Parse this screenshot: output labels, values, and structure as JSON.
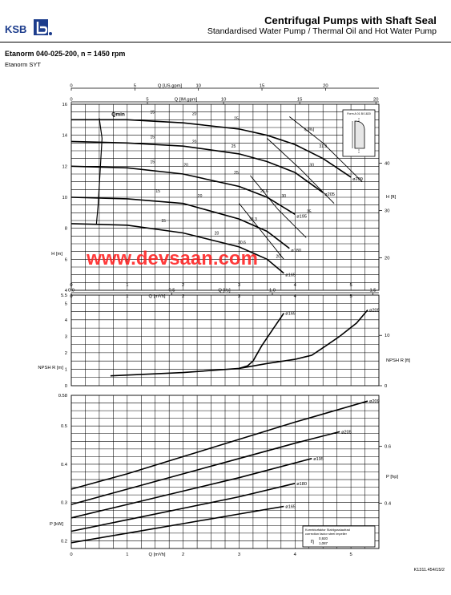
{
  "header": {
    "logo_text": "KSB",
    "title": "Centrifugal Pumps with Shaft Seal",
    "subtitle": "Standardised Water Pump / Thermal Oil and Hot Water Pump"
  },
  "pump": {
    "title": "Etanorm 040-025-200, n = 1450 rpm",
    "model": "Etanorm SYT"
  },
  "watermark": "www.devsaan.com",
  "footer": {
    "code": "K1311.454/15/2"
  },
  "chart_data": [
    {
      "type": "line",
      "id": "head",
      "x_axis": {
        "label": "Q [m³/h]",
        "range": [
          0,
          5.5
        ],
        "ticks": [
          "0",
          "1",
          "2",
          "3",
          "4",
          "5"
        ]
      },
      "top_axes": [
        {
          "label": "Q [US.gpm]",
          "range": [
            0,
            24.2
          ],
          "ticks": [
            "0",
            "5",
            "10",
            "15",
            "20"
          ]
        },
        {
          "label": "Q [IM.gpm]",
          "range": [
            0,
            20.2
          ],
          "ticks": [
            "0",
            "5",
            "10",
            "15",
            "20"
          ]
        }
      ],
      "y_axis": {
        "label": "H [m]",
        "range": [
          4,
          16
        ],
        "ticks": [
          "4",
          "6",
          "8",
          "10",
          "12",
          "14",
          "16"
        ]
      },
      "y2_axis": {
        "label": "H [ft]",
        "range": [
          13.1,
          52.5
        ],
        "ticks": [
          "20",
          "30",
          "40"
        ]
      },
      "qmin_label": "Qmin",
      "qmin": {
        "x": [
          0.5,
          0.55,
          0.48,
          0.45
        ],
        "y": [
          15.1,
          13.8,
          9.5,
          8.3
        ]
      },
      "eff_label": "η [%]",
      "series": [
        {
          "name": "ø209",
          "x": [
            0,
            1,
            2,
            3,
            3.5,
            4.0,
            4.5,
            5.0
          ],
          "y": [
            15.0,
            15.0,
            14.8,
            14.4,
            14.0,
            13.4,
            12.5,
            11.3
          ]
        },
        {
          "name": "ø205",
          "x": [
            0,
            1,
            2,
            3,
            3.5,
            4.0,
            4.5
          ],
          "y": [
            13.6,
            13.5,
            13.3,
            12.8,
            12.3,
            11.6,
            10.3
          ]
        },
        {
          "name": "ø195",
          "x": [
            0,
            1,
            2,
            3,
            3.5,
            4.0
          ],
          "y": [
            12.0,
            11.9,
            11.5,
            10.7,
            10.0,
            8.9
          ]
        },
        {
          "name": "ø180",
          "x": [
            0,
            1,
            2,
            3,
            3.5,
            3.9
          ],
          "y": [
            10.0,
            9.9,
            9.6,
            8.6,
            7.8,
            6.7
          ]
        },
        {
          "name": "ø165",
          "x": [
            0,
            1,
            2,
            3,
            3.5,
            3.8
          ],
          "y": [
            8.3,
            8.2,
            7.7,
            6.8,
            6.0,
            5.1
          ]
        }
      ],
      "efficiency_labels": [
        {
          "text": "15",
          "x": 1.45,
          "y": 15.4
        },
        {
          "text": "20",
          "x": 2.2,
          "y": 15.3
        },
        {
          "text": "25",
          "x": 2.95,
          "y": 15.0
        },
        {
          "text": "15",
          "x": 1.45,
          "y": 13.8
        },
        {
          "text": "20",
          "x": 2.2,
          "y": 13.5
        },
        {
          "text": "25",
          "x": 2.9,
          "y": 13.2
        },
        {
          "text": "31.9",
          "x": 4.5,
          "y": 13.2
        },
        {
          "text": "15",
          "x": 1.45,
          "y": 12.2
        },
        {
          "text": "20",
          "x": 2.05,
          "y": 12.0
        },
        {
          "text": "25",
          "x": 2.95,
          "y": 11.5
        },
        {
          "text": "30",
          "x": 4.3,
          "y": 12.0
        },
        {
          "text": "15",
          "x": 1.55,
          "y": 10.3
        },
        {
          "text": "20",
          "x": 2.3,
          "y": 10.0
        },
        {
          "text": "26.6",
          "x": 3.45,
          "y": 10.3
        },
        {
          "text": "30",
          "x": 3.8,
          "y": 10.0
        },
        {
          "text": "15",
          "x": 1.65,
          "y": 8.4
        },
        {
          "text": "20",
          "x": 2.6,
          "y": 7.6
        },
        {
          "text": "33.3",
          "x": 3.25,
          "y": 8.5
        },
        {
          "text": "25",
          "x": 4.25,
          "y": 9.0
        },
        {
          "text": "30.6",
          "x": 3.05,
          "y": 7.0
        },
        {
          "text": "20",
          "x": 3.7,
          "y": 6.1
        }
      ],
      "eff_curves": [
        {
          "x": [
            3.9,
            4.5,
            5.2
          ],
          "y": [
            15.2,
            13.5,
            11.0
          ]
        },
        {
          "x": [
            3.5,
            4.1,
            4.7
          ],
          "y": [
            13.8,
            11.8,
            9.6
          ]
        },
        {
          "x": [
            3.2,
            3.7,
            4.2
          ],
          "y": [
            11.4,
            9.2,
            7.4
          ]
        },
        {
          "x": [
            3.0,
            3.4,
            3.8
          ],
          "y": [
            9.6,
            7.8,
            6.0
          ]
        }
      ],
      "inset": {
        "label": "Form A 01 Bl 1820"
      },
      "grid": true
    },
    {
      "type": "line",
      "id": "npsh",
      "x_axis": {
        "range": [
          0,
          5.5
        ],
        "ticks": [
          "0",
          "1",
          "2",
          "3",
          "4",
          "5"
        ]
      },
      "top_axis": {
        "label": "Q [l/s]",
        "range": [
          0,
          1.53
        ],
        "ticks": [
          "0.0",
          "0.5",
          "1.0",
          "1.5"
        ]
      },
      "y_axis": {
        "label": "NPSH R [m]",
        "range": [
          0,
          5.5
        ],
        "ticks": [
          "0",
          "1",
          "2",
          "3",
          "4",
          "5",
          "5.5"
        ]
      },
      "y2_axis": {
        "label": "NPSH R [ft]",
        "range": [
          0,
          18.0
        ],
        "ticks": [
          "0",
          "10"
        ]
      },
      "series": [
        {
          "name": "ø165",
          "x": [
            0.7,
            2.0,
            3.0,
            3.15,
            3.25,
            3.4,
            3.6,
            3.8
          ],
          "y": [
            0.6,
            0.8,
            1.05,
            1.2,
            1.5,
            2.4,
            3.4,
            4.4
          ]
        },
        {
          "name": "ø209",
          "x": [
            3.0,
            3.5,
            4.0,
            4.3,
            4.5,
            4.8,
            5.1,
            5.3
          ],
          "y": [
            1.05,
            1.35,
            1.6,
            1.85,
            2.3,
            3.0,
            3.8,
            4.6
          ]
        }
      ],
      "grid": true
    },
    {
      "type": "line",
      "id": "power",
      "x_axis": {
        "label": "Q [m³/h]",
        "range": [
          0,
          5.5
        ],
        "ticks": [
          "0",
          "1",
          "2",
          "3",
          "4",
          "5"
        ]
      },
      "y_axis": {
        "label": "P [kW]",
        "range": [
          0.18,
          0.58
        ],
        "ticks": [
          "0.2",
          "0.3",
          "0.4",
          "0.5",
          "0.58"
        ]
      },
      "y2_axis": {
        "label": "P [hp]",
        "range": [
          0.24,
          0.78
        ],
        "ticks": [
          "0.4",
          "0.6"
        ]
      },
      "series": [
        {
          "name": "ø209",
          "x": [
            0,
            1,
            2,
            3,
            4,
            5.3
          ],
          "y": [
            0.335,
            0.375,
            0.42,
            0.465,
            0.51,
            0.565
          ]
        },
        {
          "name": "ø205",
          "x": [
            0,
            1,
            2,
            3,
            4,
            4.8
          ],
          "y": [
            0.295,
            0.335,
            0.375,
            0.415,
            0.455,
            0.485
          ]
        },
        {
          "name": "ø195",
          "x": [
            0,
            1,
            2,
            3,
            4.3
          ],
          "y": [
            0.26,
            0.295,
            0.33,
            0.365,
            0.415
          ]
        },
        {
          "name": "ø180",
          "x": [
            0,
            1,
            2,
            3,
            4.0
          ],
          "y": [
            0.225,
            0.255,
            0.285,
            0.315,
            0.35
          ]
        },
        {
          "name": "ø165",
          "x": [
            0,
            1,
            2,
            3,
            3.8
          ],
          "y": [
            0.195,
            0.22,
            0.245,
            0.27,
            0.29
          ]
        }
      ],
      "legend_box": {
        "line1": "Korrekturfaktor Stahlgusslaufrad",
        "line2": "correction factor steel impeller",
        "symbol": "η",
        "f1": "0,920",
        "f2": "1,087"
      },
      "grid": true
    }
  ]
}
